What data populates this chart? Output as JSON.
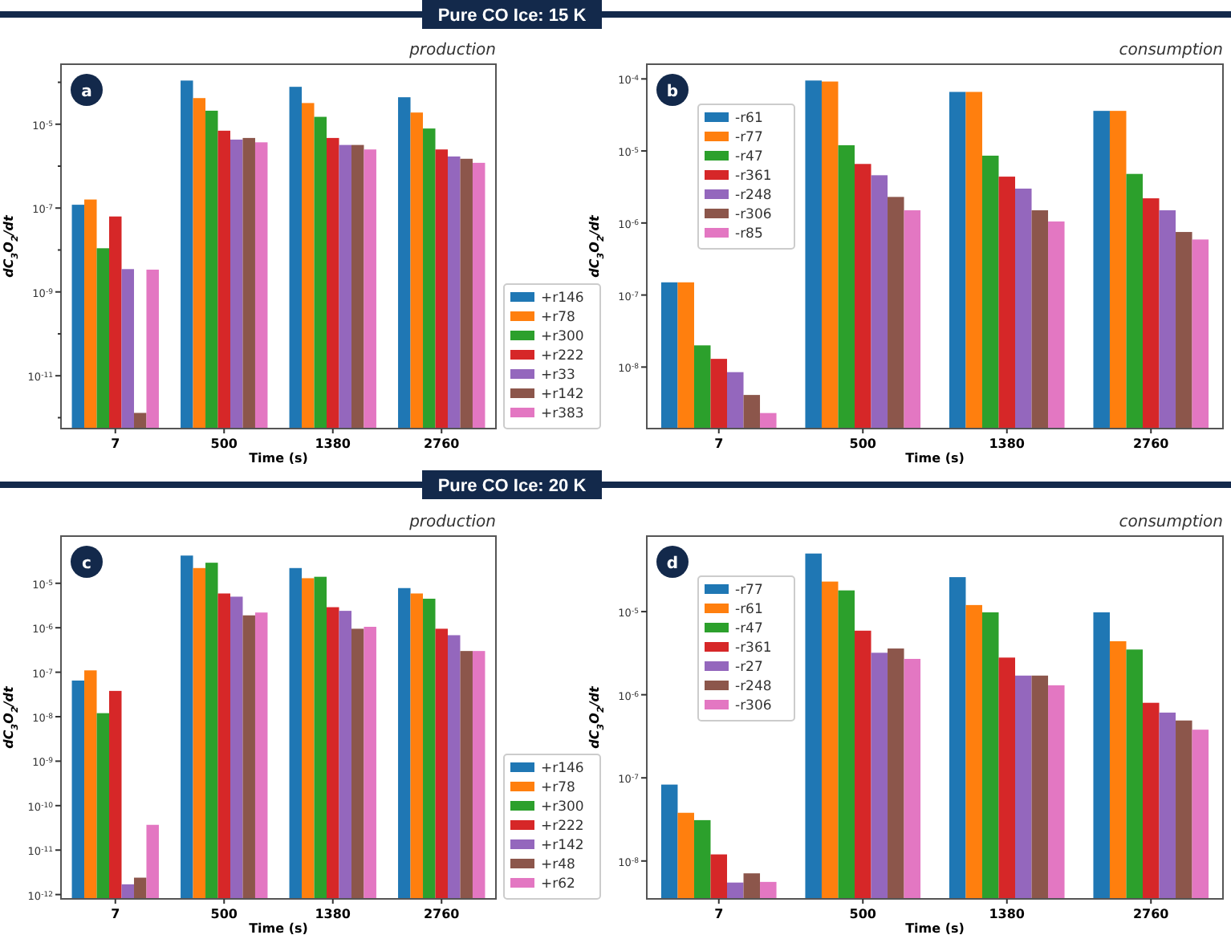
{
  "chart_data": [
    {
      "type": "bar",
      "title": "Pure CO Ice: 15 K",
      "subtitle": "production",
      "annotations": [
        "a"
      ],
      "xlabel": "Time (s)",
      "ylabel": "dC$_{3}$O$_{2}$/dt",
      "categories": [
        "7",
        "500",
        "1380",
        "2760"
      ],
      "log": "y",
      "legend": "bottom right",
      "ylim": [
        5.5e-13,
        0.00027
      ],
      "yticks": [
        {
          "value": 1e-12,
          "label": null
        },
        {
          "value": 1e-11,
          "label": "10$^{-11}$"
        },
        {
          "value": 1e-10,
          "label": null
        },
        {
          "value": 1e-09,
          "label": "10$^{-9}$"
        },
        {
          "value": 1e-08,
          "label": null
        },
        {
          "value": 1e-07,
          "label": "10$^{-7}$"
        },
        {
          "value": 1e-06,
          "label": null
        },
        {
          "value": 1e-05,
          "label": "10$^{-5}$"
        },
        {
          "value": 0.0001,
          "label": null
        }
      ],
      "series": [
        {
          "name": "+r146",
          "color": "#1f77b4",
          "values": [
            1.2e-07,
            0.00011,
            7.8e-05,
            4.4e-05
          ]
        },
        {
          "name": "+r78",
          "color": "#ff7f0e",
          "values": [
            1.6e-07,
            4.2e-05,
            3.2e-05,
            1.9e-05
          ]
        },
        {
          "name": "+r300",
          "color": "#2ca02c",
          "values": [
            1.1e-08,
            2.1e-05,
            1.5e-05,
            7.9e-06
          ]
        },
        {
          "name": "+r222",
          "color": "#d62728",
          "values": [
            6.3e-08,
            7e-06,
            4.7e-06,
            2.5e-06
          ]
        },
        {
          "name": "+r33",
          "color": "#9467bd",
          "values": [
            3.5e-09,
            4.3e-06,
            3.2e-06,
            1.7e-06
          ]
        },
        {
          "name": "+r142",
          "color": "#8c564b",
          "values": [
            1.3e-12,
            4.7e-06,
            3.2e-06,
            1.5e-06
          ]
        },
        {
          "name": "+r383",
          "color": "#e377c2",
          "values": [
            3.4e-09,
            3.7e-06,
            2.5e-06,
            1.2e-06
          ]
        }
      ]
    },
    {
      "type": "bar",
      "subtitle": "consumption",
      "annotations": [
        "b"
      ],
      "xlabel": "Time (s)",
      "ylabel": "dC$_{3}$O$_{2}$/dt",
      "categories": [
        "7",
        "500",
        "1380",
        "2760"
      ],
      "log": "y",
      "legend": "top left",
      "ylim": [
        1.4e-09,
        0.00016
      ],
      "yticks": [
        {
          "value": 1e-08,
          "label": "10$^{-8}$"
        },
        {
          "value": 1e-07,
          "label": "10$^{-7}$"
        },
        {
          "value": 1e-06,
          "label": "10$^{-6}$"
        },
        {
          "value": 1e-05,
          "label": "10$^{-5}$"
        },
        {
          "value": 0.0001,
          "label": "10$^{-4}$"
        }
      ],
      "series": [
        {
          "name": "-r61",
          "color": "#1f77b4",
          "values": [
            1.5e-07,
            9.5e-05,
            6.6e-05,
            3.6e-05
          ]
        },
        {
          "name": "-r77",
          "color": "#ff7f0e",
          "values": [
            1.5e-07,
            9.2e-05,
            6.6e-05,
            3.6e-05
          ]
        },
        {
          "name": "-r47",
          "color": "#2ca02c",
          "values": [
            2e-08,
            1.2e-05,
            8.6e-06,
            4.8e-06
          ]
        },
        {
          "name": "-r361",
          "color": "#d62728",
          "values": [
            1.3e-08,
            6.6e-06,
            4.4e-06,
            2.2e-06
          ]
        },
        {
          "name": "-r248",
          "color": "#9467bd",
          "values": [
            8.5e-09,
            4.6e-06,
            3e-06,
            1.5e-06
          ]
        },
        {
          "name": "-r306",
          "color": "#8c564b",
          "values": [
            4.1e-09,
            2.3e-06,
            1.5e-06,
            7.5e-07
          ]
        },
        {
          "name": "-r85",
          "color": "#e377c2",
          "values": [
            2.3e-09,
            1.5e-06,
            1.05e-06,
            5.9e-07
          ]
        }
      ]
    },
    {
      "type": "bar",
      "title": "Pure CO Ice: 20 K",
      "subtitle": "production",
      "annotations": [
        "c"
      ],
      "xlabel": "Time (s)",
      "ylabel": "dC$_{3}$O$_{2}$/dt",
      "categories": [
        "7",
        "500",
        "1380",
        "2760"
      ],
      "log": "y",
      "legend": "bottom right",
      "ylim": [
        8e-13,
        0.000115
      ],
      "yticks": [
        {
          "value": 1e-12,
          "label": "10$^{-12}$"
        },
        {
          "value": 1e-11,
          "label": "10$^{-11}$"
        },
        {
          "value": 1e-10,
          "label": "10$^{-10}$"
        },
        {
          "value": 1e-09,
          "label": "10$^{-9}$"
        },
        {
          "value": 1e-08,
          "label": "10$^{-8}$"
        },
        {
          "value": 1e-07,
          "label": "10$^{-7}$"
        },
        {
          "value": 1e-06,
          "label": "10$^{-6}$"
        },
        {
          "value": 1e-05,
          "label": "10$^{-5}$"
        }
      ],
      "series": [
        {
          "name": "+r146",
          "color": "#1f77b4",
          "values": [
            6.5e-08,
            4.2e-05,
            2.2e-05,
            7.8e-06
          ]
        },
        {
          "name": "+r78",
          "color": "#ff7f0e",
          "values": [
            1.1e-07,
            2.2e-05,
            1.3e-05,
            5.9e-06
          ]
        },
        {
          "name": "+r300",
          "color": "#2ca02c",
          "values": [
            1.2e-08,
            2.9e-05,
            1.4e-05,
            4.5e-06
          ]
        },
        {
          "name": "+r222",
          "color": "#d62728",
          "values": [
            3.8e-08,
            5.9e-06,
            2.9e-06,
            9.5e-07
          ]
        },
        {
          "name": "+r142",
          "color": "#9467bd",
          "values": [
            1.7e-12,
            5e-06,
            2.4e-06,
            6.8e-07
          ]
        },
        {
          "name": "+r48",
          "color": "#8c564b",
          "values": [
            2.4e-12,
            1.9e-06,
            9.5e-07,
            3e-07
          ]
        },
        {
          "name": "+r62",
          "color": "#e377c2",
          "values": [
            3.7e-11,
            2.2e-06,
            1.05e-06,
            3e-07
          ]
        }
      ]
    },
    {
      "type": "bar",
      "subtitle": "consumption",
      "annotations": [
        "d"
      ],
      "xlabel": "Time (s)",
      "ylabel": "dC$_{3}$O$_{2}$/dt",
      "categories": [
        "7",
        "500",
        "1380",
        "2760"
      ],
      "log": "y",
      "legend": "top left",
      "ylim": [
        3.5e-09,
        8.1e-05
      ],
      "yticks": [
        {
          "value": 1e-08,
          "label": "10$^{-8}$"
        },
        {
          "value": 1e-07,
          "label": "10$^{-7}$"
        },
        {
          "value": 1e-06,
          "label": "10$^{-6}$"
        },
        {
          "value": 1e-05,
          "label": "10$^{-5}$"
        }
      ],
      "series": [
        {
          "name": "-r77",
          "color": "#1f77b4",
          "values": [
            8.3e-08,
            5e-05,
            2.6e-05,
            9.8e-06
          ]
        },
        {
          "name": "-r61",
          "color": "#ff7f0e",
          "values": [
            3.8e-08,
            2.3e-05,
            1.2e-05,
            4.4e-06
          ]
        },
        {
          "name": "-r47",
          "color": "#2ca02c",
          "values": [
            3.1e-08,
            1.8e-05,
            9.8e-06,
            3.5e-06
          ]
        },
        {
          "name": "-r361",
          "color": "#d62728",
          "values": [
            1.2e-08,
            5.9e-06,
            2.8e-06,
            8e-07
          ]
        },
        {
          "name": "-r27",
          "color": "#9467bd",
          "values": [
            5.5e-09,
            3.2e-06,
            1.7e-06,
            6.1e-07
          ]
        },
        {
          "name": "-r248",
          "color": "#8c564b",
          "values": [
            7.1e-09,
            3.6e-06,
            1.7e-06,
            4.9e-07
          ]
        },
        {
          "name": "-r306",
          "color": "#e377c2",
          "values": [
            5.6e-09,
            2.7e-06,
            1.3e-06,
            3.8e-07
          ]
        }
      ]
    }
  ]
}
